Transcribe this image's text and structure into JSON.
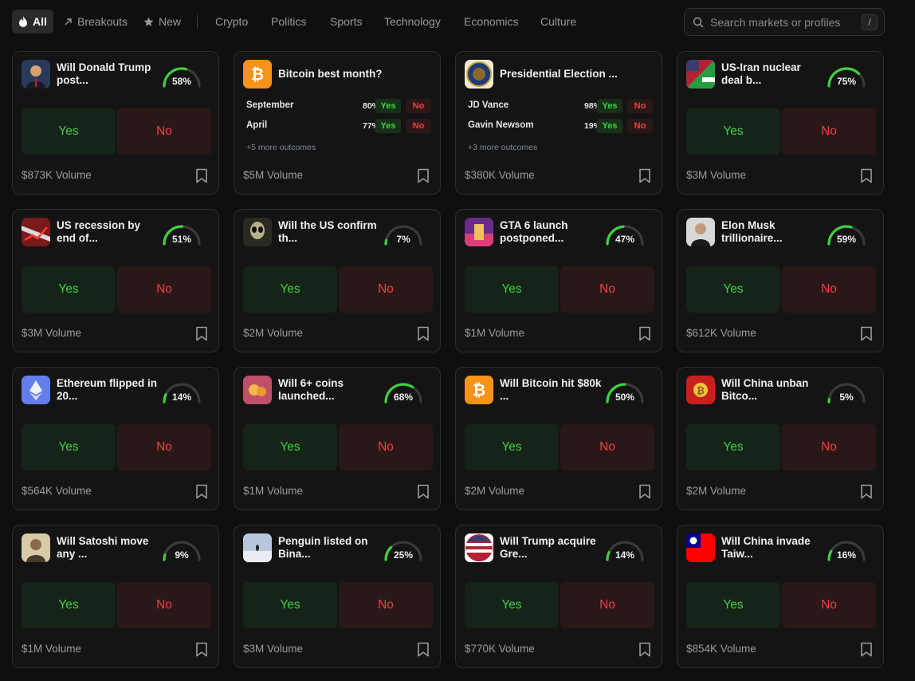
{
  "nav": {
    "items": [
      {
        "label": "All",
        "icon": "flame-icon",
        "active": true
      },
      {
        "label": "Breakouts",
        "icon": "arrow-up-right-icon"
      },
      {
        "label": "New",
        "icon": "star-icon"
      },
      {
        "label": "Crypto"
      },
      {
        "label": "Politics"
      },
      {
        "label": "Sports"
      },
      {
        "label": "Technology"
      },
      {
        "label": "Economics"
      },
      {
        "label": "Culture"
      }
    ],
    "search_placeholder": "Search markets or profiles",
    "search_shortcut": "/"
  },
  "colors": {
    "yes": "#3ed13e",
    "no": "#ee4040",
    "gauge_track": "#3a3a3a",
    "card_bg": "#141415",
    "page_bg": "#0f0f10"
  },
  "markets": [
    {
      "kind": "binary",
      "title": "Will Donald Trump post...",
      "percent": 58,
      "percent_label": "58%",
      "yes": "Yes",
      "no": "No",
      "volume": "$873K Volume",
      "thumb": "trump-photo"
    },
    {
      "kind": "multi",
      "title": "Bitcoin best month?",
      "thumb": "bitcoin-logo",
      "outcomes": [
        {
          "name": "September",
          "pct": "80%",
          "yes": "Yes",
          "no": "No"
        },
        {
          "name": "April",
          "pct": "77%",
          "yes": "Yes",
          "no": "No"
        }
      ],
      "more": "+5 more outcomes",
      "volume": "$5M Volume"
    },
    {
      "kind": "multi",
      "title": "Presidential Election ...",
      "thumb": "presidential-seal",
      "outcomes": [
        {
          "name": "JD Vance",
          "pct": "98%",
          "yes": "Yes",
          "no": "No"
        },
        {
          "name": "Gavin Newsom",
          "pct": "19%",
          "yes": "Yes",
          "no": "No"
        }
      ],
      "more": "+3 more outcomes",
      "volume": "$380K Volume"
    },
    {
      "kind": "binary",
      "title": "US-Iran nuclear deal b...",
      "percent": 75,
      "percent_label": "75%",
      "yes": "Yes",
      "no": "No",
      "volume": "$3M Volume",
      "thumb": "us-iran-flags"
    },
    {
      "kind": "binary",
      "title": "US recession by end of...",
      "percent": 51,
      "percent_label": "51%",
      "yes": "Yes",
      "no": "No",
      "volume": "$3M Volume",
      "thumb": "recession-image"
    },
    {
      "kind": "binary",
      "title": "Will the US confirm th...",
      "percent": 7,
      "percent_label": "7%",
      "yes": "Yes",
      "no": "No",
      "volume": "$2M Volume",
      "thumb": "alien-image"
    },
    {
      "kind": "binary",
      "title": "GTA 6 launch postponed...",
      "percent": 47,
      "percent_label": "47%",
      "yes": "Yes",
      "no": "No",
      "volume": "$1M Volume",
      "thumb": "gta6-image"
    },
    {
      "kind": "binary",
      "title": "Elon Musk trillionaire...",
      "percent": 59,
      "percent_label": "59%",
      "yes": "Yes",
      "no": "No",
      "volume": "$612K Volume",
      "thumb": "musk-photo"
    },
    {
      "kind": "binary",
      "title": "Ethereum flipped in 20...",
      "percent": 14,
      "percent_label": "14%",
      "yes": "Yes",
      "no": "No",
      "volume": "$564K Volume",
      "thumb": "ethereum-logo"
    },
    {
      "kind": "binary",
      "title": "Will 6+ coins launched...",
      "percent": 68,
      "percent_label": "68%",
      "yes": "Yes",
      "no": "No",
      "volume": "$1M Volume",
      "thumb": "coins-image"
    },
    {
      "kind": "binary",
      "title": "Will Bitcoin hit $80k ...",
      "percent": 50,
      "percent_label": "50%",
      "yes": "Yes",
      "no": "No",
      "volume": "$2M Volume",
      "thumb": "bitcoin-logo"
    },
    {
      "kind": "binary",
      "title": "Will China unban Bitco...",
      "percent": 5,
      "percent_label": "5%",
      "yes": "Yes",
      "no": "No",
      "volume": "$2M Volume",
      "thumb": "china-bitcoin-image"
    },
    {
      "kind": "binary",
      "title": "Will Satoshi move any ...",
      "percent": 9,
      "percent_label": "9%",
      "yes": "Yes",
      "no": "No",
      "volume": "$1M Volume",
      "thumb": "satoshi-image"
    },
    {
      "kind": "binary",
      "title": "Penguin listed on Bina...",
      "percent": 25,
      "percent_label": "25%",
      "yes": "Yes",
      "no": "No",
      "volume": "$3M Volume",
      "thumb": "penguin-image"
    },
    {
      "kind": "binary",
      "title": "Will Trump acquire Gre...",
      "percent": 14,
      "percent_label": "14%",
      "yes": "Yes",
      "no": "No",
      "volume": "$770K Volume",
      "thumb": "us-flag-circle"
    },
    {
      "kind": "binary",
      "title": "Will China invade Taiw...",
      "percent": 16,
      "percent_label": "16%",
      "yes": "Yes",
      "no": "No",
      "volume": "$854K Volume",
      "thumb": "taiwan-flag"
    }
  ]
}
